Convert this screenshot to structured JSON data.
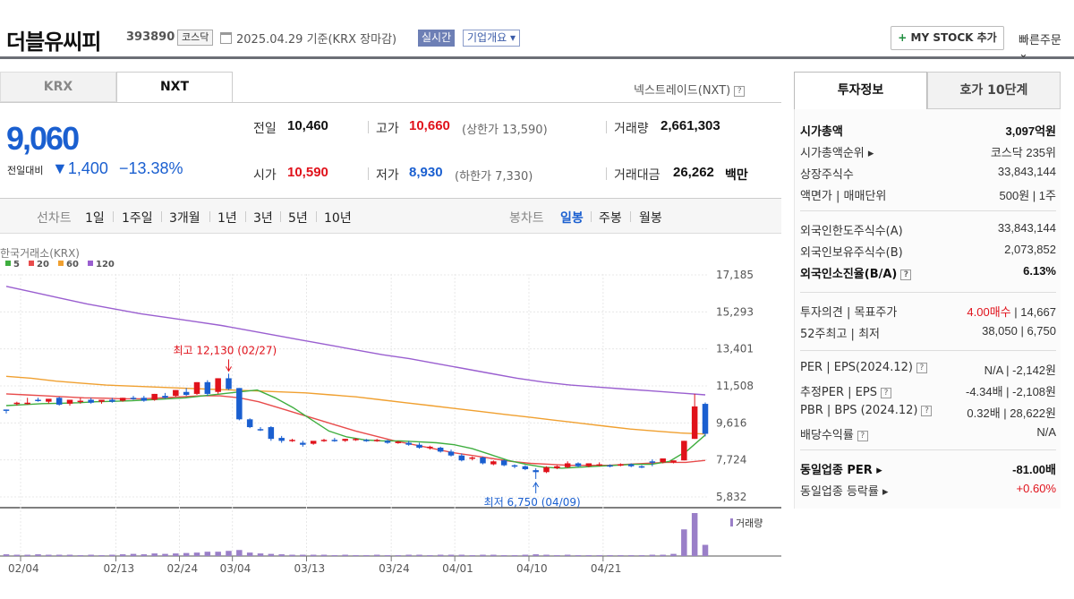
{
  "header": {
    "name": "더블유씨피",
    "code": "393890",
    "market": "코스닥",
    "date": "2025.04.29  기준(KRX 장마감)",
    "live": "실시간",
    "company_info": "기업개요 ▾",
    "mystock": "MY STOCK 추가",
    "mystock_plus": "+",
    "quick_order": "빠른주문 ⌄"
  },
  "tabs": {
    "krx": "KRX",
    "nxt": "NXT"
  },
  "nextrade_label": "넥스트레이드(NXT)",
  "help_glyph": "?",
  "price": {
    "current": "9,060",
    "change_label": "전일대비",
    "change": "▼1,400",
    "change_pct": "−13.38%"
  },
  "quote": {
    "prev_label": "전일",
    "prev": "10,460",
    "high_label": "고가",
    "high": "10,660",
    "upper_limit": "(상한가 13,590)",
    "volume_label": "거래량",
    "volume": "2,661,303",
    "open_label": "시가",
    "open": "10,590",
    "low_label": "저가",
    "low": "8,930",
    "lower_limit": "(하한가 7,330)",
    "amount_label": "거래대금",
    "amount": "26,262",
    "amount_unit": "백만"
  },
  "period": {
    "line_label": "선차트",
    "line_opts": [
      "1일",
      "1주일",
      "3개월",
      "1년",
      "3년",
      "5년",
      "10년"
    ],
    "candle_label": "봉차트",
    "candle_opts": [
      "일봉",
      "주봉",
      "월봉"
    ],
    "candle_selected": "일봉"
  },
  "chart_data": {
    "type": "candlestick",
    "source": "한국거래소(KRX)",
    "legend": [
      {
        "name": "5",
        "color": "#3fae3f"
      },
      {
        "name": "20",
        "color": "#e84c4c"
      },
      {
        "name": "60",
        "color": "#f0a030"
      },
      {
        "name": "120",
        "color": "#9a5fd0"
      }
    ],
    "y_ticks": [
      "17,185",
      "15,293",
      "13,401",
      "11,508",
      "9,616",
      "7,724",
      "5,832"
    ],
    "ylim": [
      5832,
      17185
    ],
    "x_ticks": [
      "02/04",
      "02/13",
      "02/24",
      "03/04",
      "03/13",
      "03/24",
      "04/01",
      "04/10",
      "04/21"
    ],
    "high_annotation": "최고 12,130 (02/27)",
    "low_annotation": "최저 6,750 (04/09)",
    "volume_label": "거래량",
    "candles": [
      [
        10300,
        10300,
        10250,
        10100
      ],
      [
        10600,
        10700,
        10650,
        10500
      ],
      [
        10600,
        10900,
        10650,
        10550
      ],
      [
        10800,
        10900,
        10750,
        10700
      ],
      [
        10700,
        10800,
        10850,
        10600
      ],
      [
        10900,
        10950,
        10550,
        10500
      ],
      [
        10600,
        10700,
        10800,
        10500
      ],
      [
        10700,
        10900,
        10750,
        10600
      ],
      [
        10800,
        10900,
        10650,
        10600
      ],
      [
        10700,
        10800,
        10800,
        10600
      ],
      [
        10800,
        10900,
        10700,
        10650
      ],
      [
        10750,
        10900,
        10900,
        10700
      ],
      [
        10900,
        11000,
        10850,
        10800
      ],
      [
        10900,
        11000,
        10750,
        10700
      ],
      [
        10800,
        11100,
        11100,
        10750
      ],
      [
        11000,
        11150,
        10900,
        10850
      ],
      [
        11000,
        11300,
        11300,
        10950
      ],
      [
        11200,
        11400,
        11050,
        11000
      ],
      [
        11100,
        11700,
        11700,
        11050
      ],
      [
        11700,
        11800,
        11100,
        11000
      ],
      [
        11200,
        11900,
        11900,
        11100
      ],
      [
        11900,
        12130,
        11350,
        11300
      ],
      [
        11400,
        11400,
        9800,
        9750
      ],
      [
        9800,
        9850,
        9400,
        9350
      ],
      [
        9300,
        9400,
        9250,
        9200
      ],
      [
        9400,
        9450,
        8800,
        8700
      ],
      [
        8850,
        8950,
        8700,
        8600
      ],
      [
        8700,
        8800,
        8750,
        8650
      ],
      [
        8600,
        8700,
        8500,
        8400
      ],
      [
        8550,
        8600,
        8700,
        8500
      ],
      [
        8700,
        8800,
        8750,
        8650
      ],
      [
        8750,
        8850,
        8700,
        8650
      ],
      [
        8700,
        8800,
        8800,
        8650
      ],
      [
        8750,
        8850,
        8800,
        8700
      ],
      [
        8750,
        8800,
        8700,
        8650
      ],
      [
        8700,
        8800,
        8750,
        8650
      ],
      [
        8700,
        8750,
        8600,
        8550
      ],
      [
        8600,
        8700,
        8650,
        8550
      ],
      [
        8600,
        8700,
        8500,
        8450
      ],
      [
        8500,
        8600,
        8350,
        8300
      ],
      [
        8350,
        8450,
        8400,
        8250
      ],
      [
        8350,
        8400,
        8150,
        8100
      ],
      [
        8150,
        8250,
        7950,
        7900
      ],
      [
        7950,
        8050,
        7700,
        7650
      ],
      [
        7800,
        7900,
        7850,
        7700
      ],
      [
        7850,
        7900,
        7550,
        7500
      ],
      [
        7500,
        7700,
        7650,
        7450
      ],
      [
        7700,
        7750,
        7450,
        7400
      ],
      [
        7450,
        7500,
        7400,
        7300
      ],
      [
        7400,
        7450,
        7250,
        7200
      ],
      [
        7200,
        7300,
        7100,
        6750
      ],
      [
        7100,
        7400,
        7350,
        7050
      ],
      [
        7300,
        7450,
        7400,
        7250
      ],
      [
        7350,
        7650,
        7550,
        7300
      ],
      [
        7550,
        7600,
        7400,
        7350
      ],
      [
        7400,
        7550,
        7550,
        7350
      ],
      [
        7500,
        7600,
        7500,
        7400
      ],
      [
        7450,
        7500,
        7400,
        7350
      ],
      [
        7450,
        7550,
        7500,
        7400
      ],
      [
        7500,
        7550,
        7400,
        7350
      ],
      [
        7400,
        7450,
        7350,
        7300
      ],
      [
        7650,
        7750,
        7600,
        7400
      ],
      [
        7600,
        7800,
        7800,
        7550
      ],
      [
        7600,
        7650,
        7700,
        7550
      ],
      [
        7700,
        8700,
        8700,
        7700
      ],
      [
        8800,
        11100,
        10460,
        8800
      ],
      [
        10590,
        10660,
        9060,
        8930
      ]
    ],
    "ma5": [
      10500,
      10550,
      10600,
      10620,
      10650,
      10700,
      10720,
      10750,
      10800,
      10850,
      10900,
      11000,
      11100,
      11200,
      11300,
      10900,
      10400,
      9800,
      9200,
      8900,
      8750,
      8700,
      8700,
      8650,
      8600,
      8500,
      8300,
      8000,
      7700,
      7500,
      7350,
      7300,
      7350,
      7400,
      7450,
      7500,
      7500,
      7650,
      8200,
      9000
    ],
    "ma20": [
      11100,
      11050,
      11000,
      10950,
      10900,
      10880,
      10850,
      10850,
      10900,
      10950,
      11000,
      11000,
      10900,
      10700,
      10400,
      10100,
      9800,
      9500,
      9200,
      8950,
      8700,
      8500,
      8300,
      8100,
      7950,
      7800,
      7650,
      7550,
      7500,
      7450,
      7450,
      7450,
      7500,
      7550,
      7600,
      7600,
      7700
    ],
    "ma60": [
      12000,
      11900,
      11750,
      11650,
      11550,
      11500,
      11450,
      11400,
      11350,
      11300,
      11250,
      11200,
      11150,
      11050,
      10950,
      10800,
      10650,
      10500,
      10350,
      10200,
      10050,
      9900,
      9750,
      9600,
      9450,
      9300,
      9200,
      9100,
      9050
    ],
    "ma120": [
      16600,
      16300,
      16000,
      15700,
      15450,
      15200,
      15000,
      14800,
      14600,
      14350,
      14100,
      13850,
      13600,
      13350,
      13100,
      12900,
      12650,
      12400,
      12150,
      11900,
      11700,
      11550,
      11450,
      11350,
      11250,
      11150,
      11050
    ],
    "volume": [
      0.04,
      0.03,
      0.03,
      0.04,
      0.03,
      0.03,
      0.03,
      0.02,
      0.03,
      0.02,
      0.03,
      0.04,
      0.05,
      0.04,
      0.06,
      0.05,
      0.06,
      0.07,
      0.08,
      0.1,
      0.1,
      0.12,
      0.14,
      0.08,
      0.06,
      0.05,
      0.04,
      0.03,
      0.03,
      0.03,
      0.03,
      0.02,
      0.03,
      0.02,
      0.02,
      0.03,
      0.02,
      0.02,
      0.03,
      0.03,
      0.02,
      0.03,
      0.03,
      0.03,
      0.02,
      0.03,
      0.03,
      0.02,
      0.02,
      0.03,
      0.04,
      0.03,
      0.02,
      0.03,
      0.02,
      0.02,
      0.02,
      0.02,
      0.02,
      0.02,
      0.02,
      0.03,
      0.03,
      0.05,
      0.62,
      1.0,
      0.26
    ]
  },
  "right": {
    "tab_invest": "투자정보",
    "tab_hoga": "호가 10단계",
    "rows1": [
      {
        "label": "시가총액",
        "value": "3,097억원",
        "bold": true
      },
      {
        "label": "시가총액순위 ▸",
        "value": "코스닥 235위"
      },
      {
        "label": "상장주식수",
        "value": "33,843,144"
      },
      {
        "label": "액면가 | 매매단위",
        "value": "500원 | 1주"
      }
    ],
    "rows2": [
      {
        "label": "외국인한도주식수(A)",
        "value": "33,843,144"
      },
      {
        "label": "외국인보유주식수(B)",
        "value": "2,073,852"
      },
      {
        "label": "외국인소진율(B/A)",
        "value": "6.13%",
        "bold": true,
        "help": "?"
      }
    ],
    "rows3": [
      {
        "label": "투자의견 | 목표주가",
        "value_red": "4.00매수",
        "value": " | 14,667"
      },
      {
        "label": "52주최고 | 최저",
        "value": "38,050 | 6,750"
      }
    ],
    "rows4": [
      {
        "label": "PER | EPS(2024.12)",
        "value": "N/A | -2,142원",
        "help": "?"
      },
      {
        "label": "추정PER | EPS",
        "value": "-4.34배 | -2,108원",
        "help": "?"
      },
      {
        "label": "PBR | BPS (2024.12)",
        "value": "0.32배 | 28,622원",
        "help": "?"
      },
      {
        "label": "배당수익률",
        "value": "N/A",
        "help": "?"
      }
    ],
    "rows5": [
      {
        "label": "동일업종 PER ▸",
        "value": "-81.00배",
        "bold": true
      },
      {
        "label": "동일업종 등락률 ▸",
        "value": "+0.60%",
        "red": true
      }
    ]
  }
}
